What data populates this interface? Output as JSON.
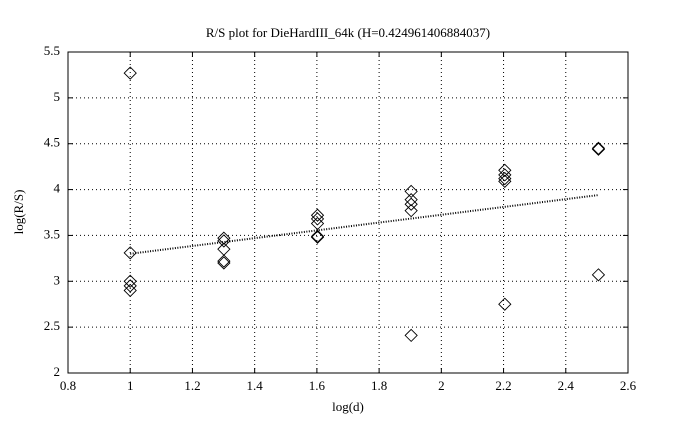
{
  "chart_data": {
    "type": "scatter",
    "title": "R/S plot for DieHardIII_64k (H=0.424961406884037)",
    "x_label": "log(d)",
    "y_label": "log(R/S)",
    "x": [
      1,
      1,
      1,
      1,
      1,
      1.301,
      1.301,
      1.301,
      1.301,
      1.301,
      1.602,
      1.602,
      1.602,
      1.602,
      1.602,
      1.903,
      1.903,
      1.903,
      1.903,
      1.903,
      2.204,
      2.204,
      2.204,
      2.204,
      2.204,
      2.505,
      2.505,
      2.505
    ],
    "values": [
      5.27,
      3.31,
      3.0,
      2.95,
      2.9,
      3.47,
      3.44,
      3.35,
      3.22,
      3.2,
      3.72,
      3.68,
      3.63,
      3.49,
      3.48,
      3.98,
      3.89,
      3.84,
      3.77,
      2.41,
      4.21,
      4.16,
      4.12,
      4.09,
      2.75,
      4.45,
      4.44,
      3.07
    ],
    "color": "#000000",
    "fit": {
      "x": [
        1,
        2.505
      ],
      "values": [
        3.3,
        3.94
      ]
    },
    "xlim": [
      0.8,
      2.6
    ],
    "xticks": [
      0.8,
      1,
      1.2,
      1.4,
      1.6,
      1.8,
      2,
      2.2,
      2.4,
      2.6
    ],
    "ylim": [
      2,
      5.5
    ],
    "yticks": [
      2,
      2.5,
      3,
      3.5,
      4,
      4.5,
      5,
      5.5
    ],
    "grid": true
  }
}
